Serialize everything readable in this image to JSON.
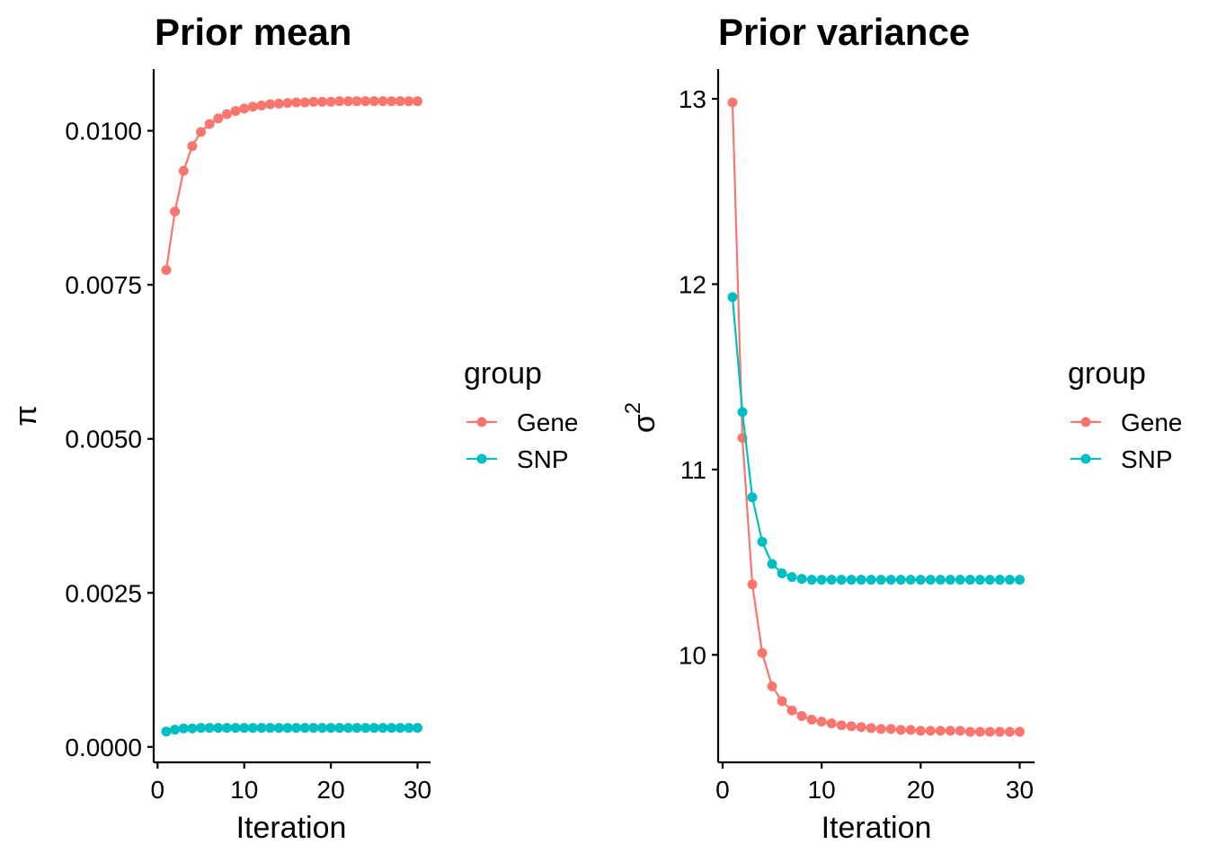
{
  "colors": {
    "gene": "#F8766D",
    "snp": "#00BFC4"
  },
  "chart_data": [
    {
      "type": "line",
      "title": "Prior mean",
      "xlabel": "Iteration",
      "ylabel": "π",
      "xlim": [
        0,
        30
      ],
      "ylim": [
        -0.00025,
        0.011
      ],
      "xticks": [
        "0",
        "10",
        "20",
        "30"
      ],
      "yticks": [
        "0.0000",
        "0.0025",
        "0.0050",
        "0.0075",
        "0.0100"
      ],
      "legend_title": "group",
      "legend_position": "right",
      "x": [
        1,
        2,
        3,
        4,
        5,
        6,
        7,
        8,
        9,
        10,
        11,
        12,
        13,
        14,
        15,
        16,
        17,
        18,
        19,
        20,
        21,
        22,
        23,
        24,
        25,
        26,
        27,
        28,
        29,
        30
      ],
      "series": [
        {
          "name": "Gene",
          "values": [
            0.00774,
            0.00869,
            0.00935,
            0.00975,
            0.00998,
            0.01011,
            0.0102,
            0.01027,
            0.01032,
            0.01036,
            0.01039,
            0.01041,
            0.01043,
            0.01044,
            0.01045,
            0.01046,
            0.01046,
            0.01047,
            0.01047,
            0.01047,
            0.01048,
            0.01048,
            0.01048,
            0.01048,
            0.01048,
            0.01048,
            0.01048,
            0.01048,
            0.01048,
            0.01048
          ]
        },
        {
          "name": "SNP",
          "values": [
            0.00025,
            0.00028,
            0.0003,
            0.0003,
            0.00031,
            0.00031,
            0.00031,
            0.00031,
            0.00031,
            0.00031,
            0.00031,
            0.00031,
            0.00031,
            0.00031,
            0.00031,
            0.00031,
            0.00031,
            0.00031,
            0.00031,
            0.00031,
            0.00031,
            0.00031,
            0.00031,
            0.00031,
            0.00031,
            0.00031,
            0.00031,
            0.00031,
            0.00031,
            0.00031
          ]
        }
      ]
    },
    {
      "type": "line",
      "title": "Prior variance",
      "xlabel": "Iteration",
      "ylabel": "σ",
      "ylabel_superscript": "2",
      "xlim": [
        0,
        30
      ],
      "ylim": [
        9.42,
        13.16
      ],
      "xticks": [
        "0",
        "10",
        "20",
        "30"
      ],
      "yticks": [
        "10",
        "11",
        "12",
        "13"
      ],
      "legend_title": "group",
      "legend_position": "right",
      "x": [
        1,
        2,
        3,
        4,
        5,
        6,
        7,
        8,
        9,
        10,
        11,
        12,
        13,
        14,
        15,
        16,
        17,
        18,
        19,
        20,
        21,
        22,
        23,
        24,
        25,
        26,
        27,
        28,
        29,
        30
      ],
      "series": [
        {
          "name": "Gene",
          "values": [
            12.98,
            11.17,
            10.38,
            10.01,
            9.83,
            9.75,
            9.7,
            9.67,
            9.65,
            9.64,
            9.63,
            9.62,
            9.615,
            9.61,
            9.605,
            9.6,
            9.6,
            9.595,
            9.595,
            9.59,
            9.59,
            9.59,
            9.59,
            9.59,
            9.585,
            9.585,
            9.585,
            9.585,
            9.585,
            9.585
          ]
        },
        {
          "name": "SNP",
          "values": [
            11.93,
            11.31,
            10.85,
            10.61,
            10.49,
            10.44,
            10.42,
            10.41,
            10.405,
            10.405,
            10.405,
            10.405,
            10.405,
            10.405,
            10.405,
            10.405,
            10.405,
            10.405,
            10.405,
            10.405,
            10.405,
            10.405,
            10.405,
            10.405,
            10.405,
            10.405,
            10.405,
            10.405,
            10.405,
            10.405
          ]
        }
      ]
    }
  ]
}
